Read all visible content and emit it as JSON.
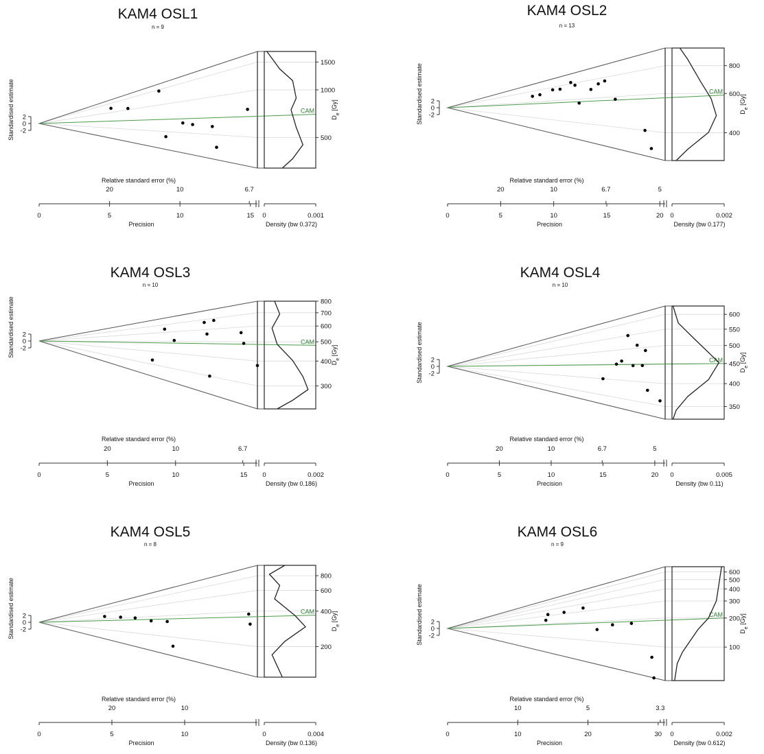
{
  "chart_data": [
    {
      "type": "scatter",
      "subtype": "abanico",
      "title": "KAM4 OSL1",
      "subtitle": "n = 9",
      "ylabel": "Standardised estimate",
      "top_axis_label": "Relative standard error (%)",
      "xlabel": "Precision",
      "density_label": "Density (bw 0.372)",
      "zlabel_main": "D",
      "zlabel_sub": "e",
      "zlabel_unit": " [Gy]",
      "cam_label": "CAM",
      "cam_value": 700,
      "xlim": [
        0,
        15.5
      ],
      "zlim": [
        320,
        1750
      ],
      "ylim": [
        -14,
        14
      ],
      "y_ticks": [
        "2",
        "0",
        "-2"
      ],
      "x_ticks": [
        0,
        5,
        10,
        15
      ],
      "rse_ticks": [
        "20",
        "10",
        "6.7"
      ],
      "z_ticks": [
        500,
        1000,
        1500
      ],
      "density_ticks": [
        "0",
        "0.001"
      ],
      "x": [
        5.1,
        6.3,
        8.5,
        9.0,
        10.2,
        10.9,
        12.3,
        12.6,
        14.8
      ],
      "de": [
        1200,
        1050,
        1450,
        440,
        620,
        600,
        580,
        400,
        760
      ],
      "density_profile": [
        [
          0,
          0.05
        ],
        [
          0.15,
          0.3
        ],
        [
          0.25,
          0.55
        ],
        [
          0.4,
          0.62
        ],
        [
          0.5,
          0.52
        ],
        [
          0.65,
          0.62
        ],
        [
          0.8,
          0.75
        ],
        [
          0.92,
          0.55
        ],
        [
          1,
          0.35
        ]
      ]
    },
    {
      "type": "scatter",
      "subtype": "abanico",
      "title": "KAM4 OSL2",
      "subtitle": "n = 13",
      "ylabel": "Standardised estimate",
      "top_axis_label": "Relative standard error (%)",
      "xlabel": "Precision",
      "density_label": "Density (bw 0.177)",
      "zlabel_main": "D",
      "zlabel_sub": "e",
      "zlabel_unit": " [Gy]",
      "cam_label": "CAM",
      "cam_value": 590,
      "xlim": [
        0,
        20.5
      ],
      "zlim": [
        300,
        960
      ],
      "ylim": [
        -10,
        10
      ],
      "y_ticks": [
        "2",
        "0",
        "-2"
      ],
      "x_ticks": [
        0,
        5,
        10,
        15,
        20
      ],
      "rse_ticks": [
        "20",
        "10",
        "6.7",
        "5"
      ],
      "z_ticks": [
        400,
        600,
        800
      ],
      "density_ticks": [
        "0",
        "0.002"
      ],
      "x": [
        8.0,
        8.7,
        9.9,
        10.6,
        11.6,
        12.0,
        12.4,
        13.5,
        14.2,
        14.8,
        15.8,
        18.6,
        19.2
      ],
      "de": [
        700,
        710,
        760,
        750,
        820,
        770,
        560,
        690,
        740,
        760,
        580,
        400,
        330
      ],
      "density_profile": [
        [
          0,
          0.15
        ],
        [
          0.1,
          0.3
        ],
        [
          0.3,
          0.55
        ],
        [
          0.45,
          0.75
        ],
        [
          0.6,
          0.85
        ],
        [
          0.75,
          0.7
        ],
        [
          0.9,
          0.3
        ],
        [
          1,
          0.08
        ]
      ]
    },
    {
      "type": "scatter",
      "subtype": "abanico",
      "title": "KAM4 OSL3",
      "subtitle": "n = 10",
      "ylabel": "Standardised estimate",
      "top_axis_label": "Relative standard error (%)",
      "xlabel": "Precision",
      "density_label": "Density (bw 0.186)",
      "zlabel_main": "D",
      "zlabel_sub": "e",
      "zlabel_unit": " [Gy]",
      "cam_label": "CAM",
      "cam_value": 480,
      "xlim": [
        0,
        16
      ],
      "zlim": [
        230,
        800
      ],
      "ylim": [
        -12,
        12
      ],
      "y_ticks": [
        "2",
        "0",
        "-2"
      ],
      "x_ticks": [
        0,
        5,
        10,
        15
      ],
      "rse_ticks": [
        "20",
        "10",
        "6.7"
      ],
      "z_ticks": [
        300,
        400,
        500,
        600,
        700,
        800
      ],
      "density_ticks": [
        "0",
        "0.002"
      ],
      "x": [
        8.3,
        9.2,
        9.9,
        12.1,
        12.3,
        12.5,
        12.8,
        14.8,
        15.0,
        16.0
      ],
      "de": [
        330,
        640,
        510,
        670,
        560,
        300,
        680,
        560,
        490,
        380
      ],
      "density_profile": [
        [
          0,
          0.2
        ],
        [
          0.12,
          0.3
        ],
        [
          0.25,
          0.15
        ],
        [
          0.4,
          0.25
        ],
        [
          0.55,
          0.55
        ],
        [
          0.7,
          0.75
        ],
        [
          0.82,
          0.85
        ],
        [
          0.92,
          0.55
        ],
        [
          1,
          0.25
        ]
      ]
    },
    {
      "type": "scatter",
      "subtype": "abanico",
      "title": "KAM4 OSL4",
      "subtitle": "n = 10",
      "ylabel": "Standardised estimate",
      "top_axis_label": "Relative standard error (%)",
      "xlabel": "Precision",
      "density_label": "Density (bw 0.11)",
      "zlabel_main": "D",
      "zlabel_sub": "e",
      "zlabel_unit": " [Gy]",
      "cam_label": "CAM",
      "cam_value": 450,
      "xlim": [
        0,
        21
      ],
      "zlim": [
        325,
        630
      ],
      "ylim": [
        -10,
        10
      ],
      "y_ticks": [
        "2",
        "0",
        "-2"
      ],
      "x_ticks": [
        0,
        5,
        10,
        15,
        20
      ],
      "rse_ticks": [
        "20",
        "10",
        "6.7",
        "5"
      ],
      "z_ticks": [
        350,
        400,
        450,
        500,
        550,
        600
      ],
      "density_ticks": [
        "0",
        "0.005"
      ],
      "x": [
        15.0,
        16.3,
        16.8,
        17.4,
        17.9,
        18.3,
        18.8,
        19.1,
        19.3,
        20.5
      ],
      "de": [
        400,
        450,
        460,
        550,
        445,
        510,
        445,
        490,
        380,
        360
      ],
      "density_profile": [
        [
          0,
          0.02
        ],
        [
          0.15,
          0.12
        ],
        [
          0.3,
          0.45
        ],
        [
          0.5,
          0.9
        ],
        [
          0.65,
          0.7
        ],
        [
          0.8,
          0.3
        ],
        [
          0.92,
          0.08
        ],
        [
          1,
          0.02
        ]
      ]
    },
    {
      "type": "scatter",
      "subtype": "abanico",
      "title": "KAM4 OSL5",
      "subtitle": "n = 8",
      "ylabel": "Standardised estimate",
      "top_axis_label": "Relative standard error (%)",
      "xlabel": "Precision",
      "density_label": "Density (bw 0.136)",
      "zlabel_main": "D",
      "zlabel_sub": "e",
      "zlabel_unit": " [Gy]",
      "cam_label": "CAM",
      "cam_value": 370,
      "xlim": [
        0,
        15
      ],
      "zlim": [
        110,
        980
      ],
      "ylim": [
        -12,
        12
      ],
      "y_ticks": [
        "2",
        "0",
        "-2"
      ],
      "x_ticks": [
        0,
        5,
        10
      ],
      "rse_ticks": [
        "20",
        "10"
      ],
      "z_ticks": [
        200,
        400,
        600,
        800
      ],
      "density_ticks": [
        "0",
        "0.004"
      ],
      "x": [
        4.5,
        5.6,
        6.6,
        7.7,
        8.8,
        9.2,
        14.4,
        14.5
      ],
      "de": [
        470,
        420,
        390,
        340,
        330,
        150,
        380,
        310
      ],
      "density_profile": [
        [
          0,
          0.4
        ],
        [
          0.08,
          0.1
        ],
        [
          0.18,
          0.3
        ],
        [
          0.3,
          0.2
        ],
        [
          0.45,
          0.6
        ],
        [
          0.55,
          0.8
        ],
        [
          0.68,
          0.4
        ],
        [
          0.8,
          0.15
        ],
        [
          0.9,
          0.25
        ],
        [
          1,
          0.35
        ]
      ]
    },
    {
      "type": "scatter",
      "subtype": "abanico",
      "title": "KAM4 OSL6",
      "subtitle": "n = 9",
      "ylabel": "Standardised estimate",
      "top_axis_label": "Relative standard error (%)",
      "xlabel": "Precision",
      "density_label": "Density (bw 0.612)",
      "zlabel_main": "D",
      "zlabel_sub": "e",
      "zlabel_unit": " [Gy]",
      "cam_label": "CAM",
      "cam_value": 200,
      "xlim": [
        0,
        31
      ],
      "zlim": [
        45,
        680
      ],
      "ylim": [
        -18,
        18
      ],
      "y_ticks": [
        "2",
        "0",
        "-2"
      ],
      "x_ticks": [
        0,
        10,
        20,
        30
      ],
      "rse_ticks": [
        "10",
        "5",
        "3.3"
      ],
      "z_ticks": [
        100,
        200,
        300,
        400,
        500,
        600
      ],
      "density_ticks": [
        "0",
        "0.002"
      ],
      "x": [
        14.0,
        14.3,
        16.6,
        19.3,
        21.3,
        23.5,
        26.2,
        29.1,
        29.4
      ],
      "de": [
        240,
        320,
        320,
        340,
        150,
        175,
        180,
        75,
        45
      ],
      "density_profile": [
        [
          0,
          0.95
        ],
        [
          0.15,
          0.9
        ],
        [
          0.3,
          0.85
        ],
        [
          0.45,
          0.7
        ],
        [
          0.55,
          0.5
        ],
        [
          0.65,
          0.35
        ],
        [
          0.75,
          0.2
        ],
        [
          0.85,
          0.1
        ],
        [
          1,
          0.05
        ]
      ]
    }
  ]
}
